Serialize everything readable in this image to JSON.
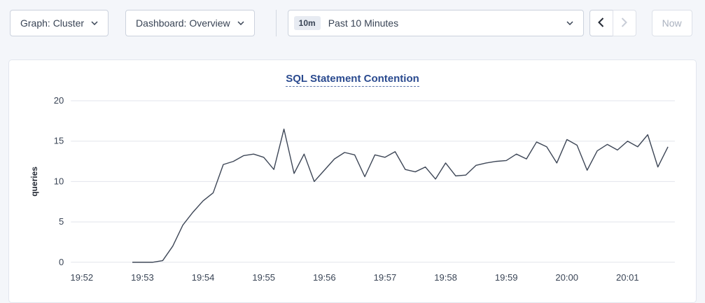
{
  "toolbar": {
    "graph_dropdown_label": "Graph: Cluster",
    "dashboard_dropdown_label": "Dashboard: Overview",
    "time_range_badge": "10m",
    "time_range_label": "Past 10 Minutes",
    "now_button_label": "Now"
  },
  "colors": {
    "page_background": "#f4f6fa",
    "card_background": "#ffffff",
    "title_blue": "#2a4a8f",
    "text": "#394455",
    "gridline": "#e2e5ec",
    "line": "#3e4757",
    "disabled": "#aab1bf"
  },
  "chart_data": {
    "type": "line",
    "title": "SQL Statement Contention",
    "xlabel": "",
    "ylabel": "queries",
    "ylim": [
      0,
      20
    ],
    "yticks": [
      0,
      5,
      10,
      15,
      20
    ],
    "grid": "horizontal",
    "legend": "none",
    "line_color": "#3e4757",
    "x_domain_minutes": [
      -0.18,
      9.78
    ],
    "x_tick_positions_minutes": [
      0,
      1,
      2,
      3,
      4,
      5,
      6,
      7,
      8,
      9
    ],
    "xtick_labels": [
      "19:52",
      "19:53",
      "19:54",
      "19:55",
      "19:56",
      "19:57",
      "19:58",
      "19:59",
      "20:00",
      "20:01"
    ],
    "series": [
      {
        "name": "queries",
        "start_time": "19:52:50",
        "start_offset_minutes": 0.8333,
        "interval_minutes": 0.16667,
        "values": [
          0,
          0,
          0,
          0.2,
          2.0,
          4.6,
          6.2,
          7.6,
          8.6,
          12.1,
          12.5,
          13.2,
          13.4,
          13.0,
          11.5,
          16.5,
          11.0,
          13.4,
          10.0,
          11.4,
          12.8,
          13.6,
          13.3,
          10.6,
          13.3,
          13.0,
          13.7,
          11.5,
          11.2,
          11.8,
          10.3,
          12.3,
          10.7,
          10.8,
          12.0,
          12.3,
          12.5,
          12.6,
          13.4,
          12.8,
          14.9,
          14.3,
          12.3,
          15.2,
          14.5,
          11.4,
          13.8,
          14.6,
          13.9,
          15.0,
          14.3,
          15.8,
          11.8,
          14.3
        ]
      }
    ]
  }
}
